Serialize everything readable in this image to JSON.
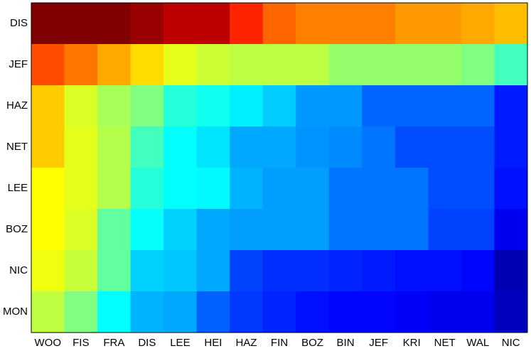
{
  "chart_data": {
    "type": "heatmap",
    "colormap": "jet",
    "x_categories": [
      "WOO",
      "FIS",
      "FRA",
      "DIS",
      "LEE",
      "HEI",
      "HAZ",
      "FIN",
      "BOZ",
      "BIN",
      "JEF",
      "KRI",
      "NET",
      "WAL",
      "NIC"
    ],
    "y_categories": [
      "DIS",
      "JEF",
      "HAZ",
      "NET",
      "LEE",
      "BOZ",
      "NIC",
      "MON"
    ],
    "values": [
      [
        1.0,
        1.0,
        1.0,
        0.975,
        0.94,
        0.94,
        0.84,
        0.775,
        0.75,
        0.75,
        0.75,
        0.725,
        0.725,
        0.71,
        0.6875
      ],
      [
        0.8,
        0.76,
        0.71,
        0.66,
        0.6,
        0.575,
        0.56,
        0.56,
        0.56,
        0.52,
        0.52,
        0.52,
        0.52,
        0.5,
        0.44
      ],
      [
        0.675,
        0.59,
        0.54,
        0.5,
        0.41,
        0.39,
        0.36,
        0.325,
        0.275,
        0.275,
        0.225,
        0.225,
        0.225,
        0.225,
        0.15
      ],
      [
        0.675,
        0.6,
        0.55,
        0.44,
        0.375,
        0.35,
        0.29,
        0.29,
        0.27,
        0.26,
        0.24,
        0.2,
        0.2,
        0.2,
        0.15
      ],
      [
        0.625,
        0.6,
        0.55,
        0.41,
        0.375,
        0.37,
        0.3,
        0.28,
        0.28,
        0.24,
        0.24,
        0.24,
        0.2,
        0.2,
        0.14
      ],
      [
        0.625,
        0.59,
        0.47,
        0.38,
        0.33,
        0.29,
        0.28,
        0.28,
        0.28,
        0.24,
        0.24,
        0.24,
        0.19,
        0.19,
        0.11
      ],
      [
        0.61,
        0.57,
        0.47,
        0.33,
        0.32,
        0.29,
        0.19,
        0.17,
        0.17,
        0.16,
        0.15,
        0.14,
        0.14,
        0.13,
        0.05
      ],
      [
        0.56,
        0.5,
        0.375,
        0.3,
        0.29,
        0.22,
        0.18,
        0.16,
        0.14,
        0.13,
        0.13,
        0.12,
        0.11,
        0.11,
        0.06
      ]
    ]
  }
}
